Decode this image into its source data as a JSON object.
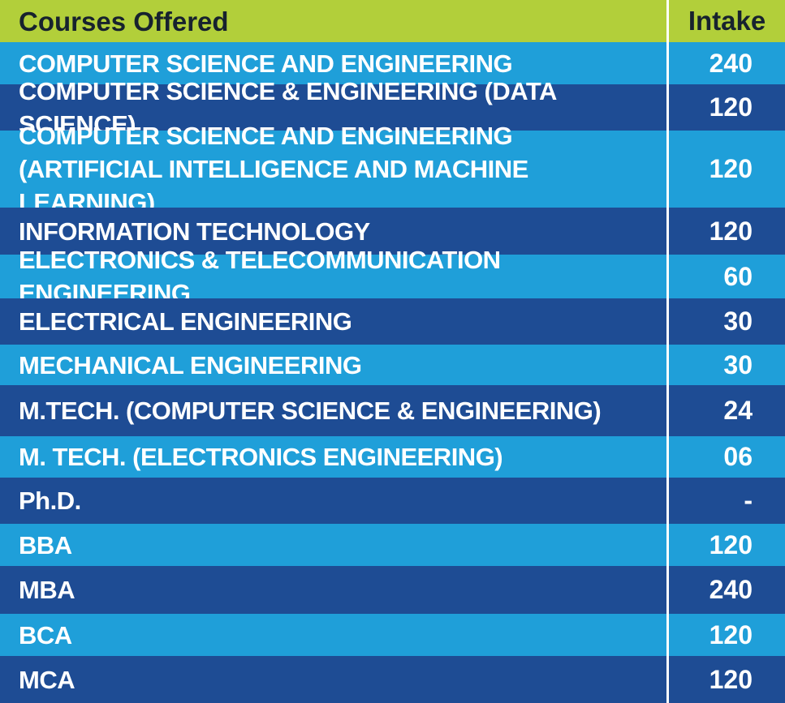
{
  "header": {
    "course_label": "Courses Offered",
    "intake_label": "Intake"
  },
  "colors": {
    "header": "#b2cf3a",
    "light_row": "#1f9fd9",
    "dark_row": "#1e4c94",
    "text": "#ffffff"
  },
  "rows": [
    {
      "course": "COMPUTER SCIENCE AND ENGINEERING",
      "intake": "240"
    },
    {
      "course": "COMPUTER SCIENCE & ENGINEERING (DATA SCIENCE)",
      "intake": "120"
    },
    {
      "course": "COMPUTER SCIENCE AND ENGINEERING\n(ARTIFICIAL INTELLIGENCE AND MACHINE LEARNING)",
      "intake": "120"
    },
    {
      "course": "INFORMATION TECHNOLOGY",
      "intake": "120"
    },
    {
      "course": "ELECTRONICS & TELECOMMUNICATION ENGINEERING",
      "intake": "60"
    },
    {
      "course": "ELECTRICAL ENGINEERING",
      "intake": "30"
    },
    {
      "course": "MECHANICAL ENGINEERING",
      "intake": "30"
    },
    {
      "course": "M.TECH. (COMPUTER SCIENCE & ENGINEERING)",
      "intake": "24"
    },
    {
      "course": "M. TECH. (ELECTRONICS ENGINEERING)",
      "intake": "06"
    },
    {
      "course": "Ph.D.",
      "intake": "-"
    },
    {
      "course": "BBA",
      "intake": "120"
    },
    {
      "course": "MBA",
      "intake": "240"
    },
    {
      "course": "BCA",
      "intake": "120"
    },
    {
      "course": "MCA",
      "intake": "120"
    }
  ]
}
